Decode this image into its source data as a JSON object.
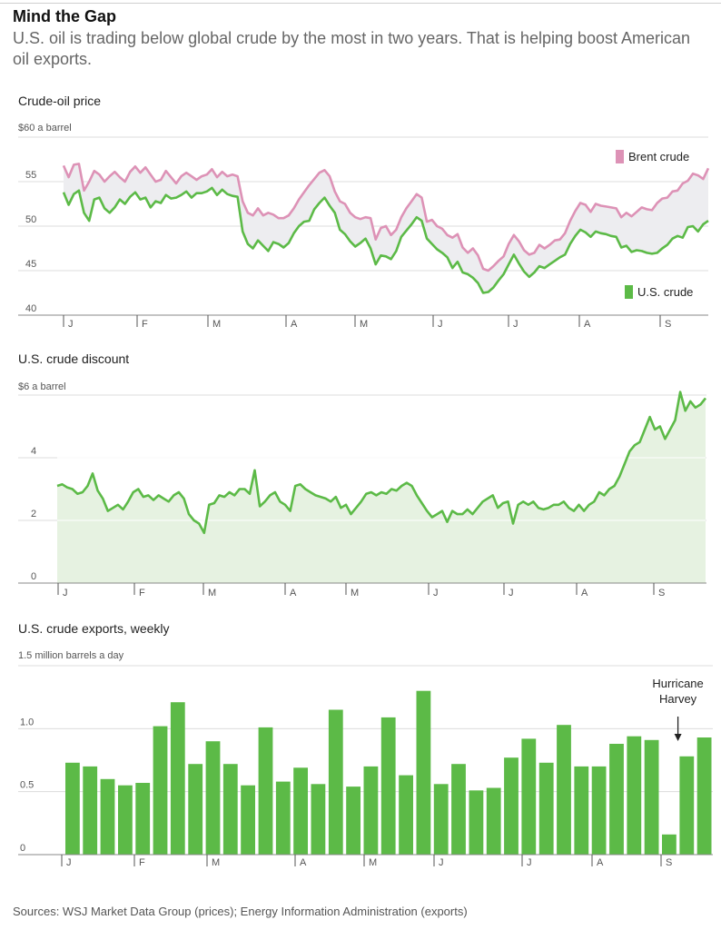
{
  "header": {
    "title": "Mind the Gap",
    "subtitle": "U.S. oil is trading below global crude by the most in two years. That is helping boost American oil exports."
  },
  "footer": {
    "source": "Sources: WSJ Market Data Group (prices); Energy Information Administration (exports)"
  },
  "colors": {
    "brent": "#dd92b6",
    "us": "#5cba47",
    "grid": "#dcdcdc",
    "fill_price": "#ededf0",
    "fill_discount": "#e6f2e1"
  },
  "chart_data": [
    {
      "type": "line",
      "title": "Crude-oil price",
      "unit_label": "$60 a barrel",
      "ylim": [
        40,
        60
      ],
      "yticks": [
        {
          "v": 40,
          "label": "40"
        },
        {
          "v": 45,
          "label": "45"
        },
        {
          "v": 50,
          "label": "50"
        },
        {
          "v": 55,
          "label": "55"
        }
      ],
      "xlabel": "",
      "ylabel": "",
      "months": [
        "J",
        "F",
        "M",
        "A",
        "M",
        "J",
        "J",
        "A",
        "S"
      ],
      "legend": {
        "brent": "Brent crude",
        "us": "U.S. crude"
      },
      "series": [
        {
          "name": "Brent crude",
          "key": "brent",
          "values": [
            56.8,
            55.5,
            56.9,
            57.0,
            54.0,
            55.0,
            56.2,
            55.8,
            55.0,
            55.6,
            56.1,
            55.5,
            55.0,
            56.1,
            56.7,
            56.0,
            56.6,
            55.8,
            55.0,
            55.2,
            56.2,
            55.5,
            54.8,
            55.6,
            56.0,
            55.6,
            55.2,
            55.6,
            55.8,
            56.4,
            55.5,
            56.1,
            55.6,
            55.8,
            55.6,
            52.8,
            51.5,
            51.2,
            52.0,
            51.2,
            51.5,
            51.3,
            50.9,
            50.9,
            51.2,
            52.0,
            53.0,
            53.8,
            54.6,
            55.3,
            56.0,
            56.3,
            55.6,
            53.9,
            52.8,
            52.5,
            51.5,
            51.0,
            50.8,
            51.0,
            50.9,
            48.5,
            49.8,
            50.0,
            49.0,
            49.6,
            51.0,
            52.0,
            52.8,
            53.6,
            53.2,
            50.5,
            50.7,
            50.0,
            49.7,
            49.0,
            48.7,
            49.1,
            47.6,
            47.0,
            47.5,
            46.7,
            45.2,
            45.0,
            45.5,
            46.1,
            46.6,
            48.0,
            49.0,
            48.3,
            47.3,
            46.8,
            47.0,
            47.9,
            47.5,
            47.9,
            48.4,
            48.5,
            49.2,
            50.6,
            51.7,
            52.6,
            52.4,
            51.6,
            52.5,
            52.3,
            52.2,
            52.1,
            52.0,
            51.0,
            51.5,
            51.1,
            51.6,
            52.1,
            51.9,
            51.8,
            52.6,
            53.1,
            53.2,
            53.9,
            54.0,
            54.8,
            55.1,
            55.9,
            55.7,
            55.3,
            56.5
          ]
        },
        {
          "name": "U.S. crude",
          "key": "us",
          "values": [
            53.8,
            52.4,
            53.6,
            54.0,
            51.5,
            50.6,
            53.0,
            53.2,
            52.0,
            51.5,
            52.1,
            53.0,
            52.5,
            53.3,
            53.8,
            53.0,
            53.2,
            52.1,
            52.8,
            52.6,
            53.5,
            53.1,
            53.2,
            53.5,
            53.9,
            53.2,
            53.7,
            53.7,
            53.9,
            54.3,
            53.5,
            54.1,
            53.6,
            53.4,
            53.3,
            49.4,
            48.0,
            47.5,
            48.4,
            47.8,
            47.2,
            48.2,
            48.0,
            47.6,
            48.1,
            49.2,
            50.0,
            50.5,
            50.6,
            51.9,
            52.6,
            53.2,
            52.3,
            51.5,
            49.6,
            49.1,
            48.3,
            47.7,
            48.1,
            48.6,
            47.5,
            45.7,
            46.7,
            46.6,
            46.3,
            47.2,
            48.8,
            49.5,
            50.2,
            51.0,
            50.6,
            48.6,
            48.0,
            47.4,
            47.0,
            46.5,
            45.3,
            46.0,
            44.8,
            44.6,
            44.2,
            43.6,
            42.5,
            42.6,
            43.1,
            43.9,
            44.6,
            45.7,
            46.8,
            45.8,
            44.9,
            44.3,
            44.8,
            45.5,
            45.3,
            45.7,
            46.1,
            46.5,
            46.8,
            48.0,
            48.9,
            49.6,
            49.3,
            48.8,
            49.4,
            49.2,
            49.1,
            48.9,
            48.8,
            47.6,
            47.8,
            47.1,
            47.3,
            47.2,
            47.0,
            46.9,
            47.0,
            47.5,
            47.9,
            48.6,
            48.9,
            48.7,
            49.9,
            50.0,
            49.4,
            50.2,
            50.6
          ]
        }
      ]
    },
    {
      "type": "area",
      "title": "U.S. crude discount",
      "unit_label": "$6 a barrel",
      "ylim": [
        0,
        6
      ],
      "yticks": [
        {
          "v": 0,
          "label": "0"
        },
        {
          "v": 2,
          "label": "2"
        },
        {
          "v": 4,
          "label": "4"
        }
      ],
      "xlabel": "",
      "ylabel": "",
      "months": [
        "J",
        "F",
        "M",
        "A",
        "M",
        "J",
        "J",
        "A",
        "S"
      ],
      "series": [
        {
          "name": "U.S. crude discount",
          "values": [
            3.1,
            3.15,
            3.05,
            3.0,
            2.85,
            2.9,
            3.1,
            3.5,
            2.95,
            2.7,
            2.3,
            2.4,
            2.5,
            2.35,
            2.6,
            2.9,
            3.0,
            2.75,
            2.8,
            2.65,
            2.8,
            2.7,
            2.6,
            2.8,
            2.9,
            2.7,
            2.2,
            2.0,
            1.9,
            1.6,
            2.5,
            2.55,
            2.8,
            2.75,
            2.9,
            2.8,
            3.0,
            3.0,
            2.85,
            3.6,
            2.45,
            2.6,
            2.8,
            2.9,
            2.6,
            2.5,
            2.3,
            3.1,
            3.15,
            3.0,
            2.9,
            2.8,
            2.75,
            2.7,
            2.6,
            2.75,
            2.4,
            2.5,
            2.2,
            2.4,
            2.6,
            2.85,
            2.9,
            2.8,
            2.9,
            2.85,
            3.0,
            2.95,
            3.1,
            3.2,
            3.1,
            2.8,
            2.55,
            2.3,
            2.1,
            2.2,
            2.3,
            1.95,
            2.3,
            2.2,
            2.2,
            2.35,
            2.2,
            2.4,
            2.6,
            2.7,
            2.8,
            2.4,
            2.55,
            2.6,
            1.9,
            2.5,
            2.6,
            2.5,
            2.6,
            2.4,
            2.35,
            2.4,
            2.5,
            2.5,
            2.6,
            2.4,
            2.3,
            2.5,
            2.3,
            2.5,
            2.6,
            2.9,
            2.8,
            3.0,
            3.1,
            3.4,
            3.8,
            4.2,
            4.4,
            4.5,
            4.9,
            5.3,
            4.9,
            5.0,
            4.6,
            4.9,
            5.2,
            6.1,
            5.5,
            5.8,
            5.6,
            5.7,
            5.9
          ]
        }
      ]
    },
    {
      "type": "bar",
      "title": "U.S. crude exports, weekly",
      "unit_label": "1.5 million barrels a day",
      "ylim": [
        0,
        1.5
      ],
      "yticks": [
        {
          "v": 0,
          "label": "0"
        },
        {
          "v": 0.5,
          "label": "0.5"
        },
        {
          "v": 1.0,
          "label": "1.0"
        }
      ],
      "xlabel": "",
      "ylabel": "",
      "months": [
        "J",
        "F",
        "M",
        "A",
        "M",
        "J",
        "J",
        "A",
        "S"
      ],
      "annotation": {
        "line1": "Hurricane",
        "line2": "Harvey",
        "index": 35
      },
      "series": [
        {
          "name": "U.S. crude exports",
          "values": [
            0.73,
            0.7,
            0.6,
            0.55,
            0.57,
            1.02,
            1.21,
            0.72,
            0.9,
            0.72,
            0.55,
            1.01,
            0.58,
            0.69,
            0.56,
            1.15,
            0.54,
            0.7,
            1.09,
            0.63,
            1.3,
            0.56,
            0.72,
            0.51,
            0.53,
            0.77,
            0.92,
            0.73,
            1.03,
            0.7,
            0.7,
            0.88,
            0.94,
            0.91,
            0.16,
            0.78,
            0.93
          ]
        }
      ]
    }
  ]
}
